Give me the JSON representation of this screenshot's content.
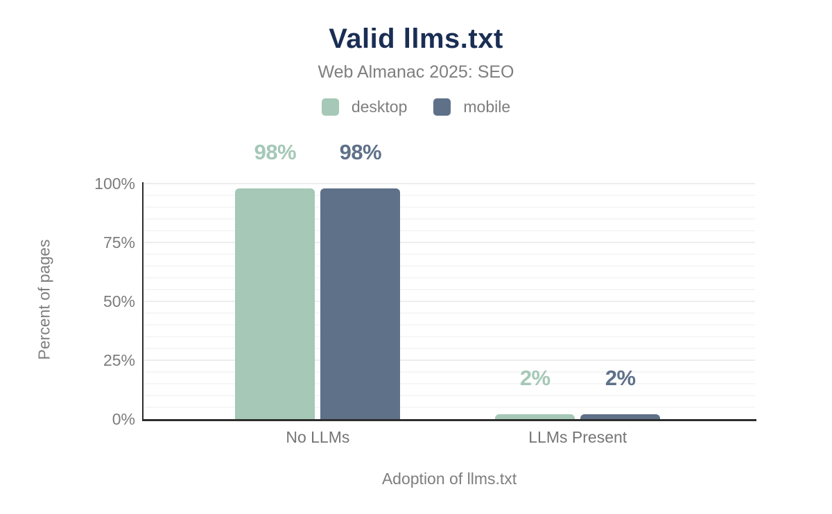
{
  "header": {
    "title": "Valid llms.txt",
    "subtitle": "Web Almanac 2025: SEO"
  },
  "chart_data": {
    "type": "bar",
    "title": "Valid llms.txt",
    "subtitle": "Web Almanac 2025: SEO",
    "categories": [
      "No LLMs",
      "LLMs Present"
    ],
    "series": [
      {
        "name": "desktop",
        "color": "#a5c8b7",
        "values": [
          98,
          2
        ],
        "data_labels": [
          "98%",
          "2%"
        ]
      },
      {
        "name": "mobile",
        "color": "#5f7189",
        "values": [
          98,
          2
        ],
        "data_labels": [
          "98%",
          "2%"
        ]
      }
    ],
    "xlabel": "Adoption of llms.txt",
    "ylabel": "Percent of pages",
    "ylim": [
      0,
      100
    ],
    "yticks": [
      {
        "value": 0,
        "label": "0%"
      },
      {
        "value": 25,
        "label": "25%"
      },
      {
        "value": 50,
        "label": "50%"
      },
      {
        "value": 75,
        "label": "75%"
      },
      {
        "value": 100,
        "label": "100%"
      }
    ],
    "grid": {
      "enabled": true,
      "minor_step_percent": 5,
      "major_step_percent": 25
    },
    "legend_position": "top",
    "legend": [
      {
        "label": "desktop",
        "color": "#a5c8b7"
      },
      {
        "label": "mobile",
        "color": "#5f7189"
      }
    ]
  },
  "colors": {
    "title_text": "#1a2e54",
    "muted_text": "#7e7e7e",
    "axis_line": "#2d2d2d",
    "grid_minor": "#f6f6f6",
    "grid_major": "#ededed",
    "background": "#ffffff"
  }
}
